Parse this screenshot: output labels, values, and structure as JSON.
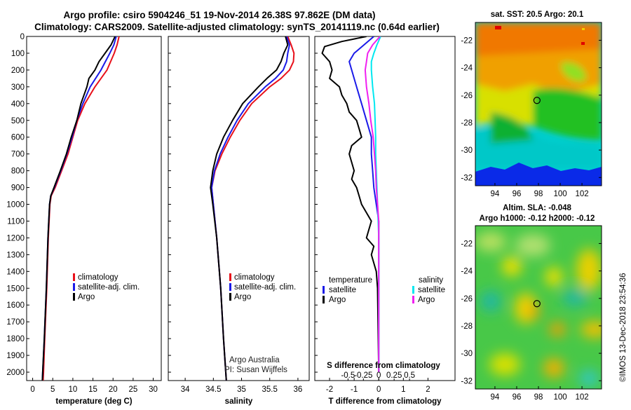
{
  "header": {
    "title_line1": "Argo profile: csiro 5904246_51 19-Nov-2014 26.38S 97.862E (DM data)",
    "title_line2": "Climatology: CARS2009. Satellite-adjusted climatology: synTS_20141119.nc (0.64d earlier)"
  },
  "colors": {
    "climatology": "#e8101a",
    "satellite": "#1a1ae8",
    "argo": "#000000",
    "satellite_salinity": "#00e8f0",
    "argo_salinity": "#f020f0"
  },
  "chart_data": [
    {
      "type": "line",
      "title": "temperature",
      "xlabel": "temperature (deg C)",
      "ylabel": "",
      "xlim": [
        -1.5,
        32
      ],
      "ylim": [
        2050,
        0
      ],
      "xticks": [
        "0",
        "5",
        "10",
        "15",
        "20",
        "25",
        "30"
      ],
      "yticks": [
        "0",
        "100",
        "200",
        "300",
        "400",
        "500",
        "600",
        "700",
        "800",
        "900",
        "1000",
        "1100",
        "1200",
        "1300",
        "1400",
        "1500",
        "1600",
        "1700",
        "1800",
        "1900",
        "2000"
      ],
      "legend": [
        "climatology",
        "satellite-adj. clim.",
        "Argo"
      ],
      "series": [
        {
          "name": "climatology",
          "depth": [
            0,
            50,
            100,
            200,
            300,
            400,
            500,
            600,
            700,
            800,
            900,
            950,
            1000,
            1200,
            1500,
            1800,
            2000,
            2050
          ],
          "values": [
            21.5,
            21,
            20.3,
            18.5,
            15.5,
            13,
            11.2,
            10,
            8.8,
            7.2,
            5.6,
            4.6,
            4.3,
            3.9,
            3.5,
            3,
            2.7,
            2.6
          ]
        },
        {
          "name": "satellite-adj. clim.",
          "depth": [
            0,
            50,
            100,
            200,
            300,
            400,
            500,
            600,
            700,
            800,
            900,
            950,
            1000,
            1200,
            1500,
            1800,
            2000,
            2050
          ],
          "values": [
            20.8,
            20.2,
            19.2,
            17,
            14.3,
            12.5,
            11,
            9.8,
            8.5,
            7,
            5.4,
            4.5,
            4.2,
            3.8,
            3.4,
            2.9,
            2.5,
            2.4
          ]
        },
        {
          "name": "Argo",
          "depth": [
            0,
            50,
            100,
            150,
            200,
            250,
            300,
            400,
            500,
            600,
            700,
            800,
            900,
            950,
            1000,
            1200,
            1500,
            1800,
            2000,
            2050
          ],
          "values": [
            20.5,
            19.5,
            18,
            16.5,
            15.5,
            14,
            13.5,
            12,
            11,
            9.6,
            8.4,
            6.9,
            5.3,
            4.5,
            4.2,
            3.8,
            3.4,
            2.9,
            2.5,
            2.4
          ]
        }
      ]
    },
    {
      "type": "line",
      "title": "salinity",
      "xlabel": "salinity",
      "ylabel": "",
      "xlim": [
        33.7,
        36.2
      ],
      "ylim": [
        2050,
        0
      ],
      "xticks": [
        "34",
        "34.5",
        "35",
        "35.5",
        "36"
      ],
      "legend": [
        "climatology",
        "satellite-adj. clim.",
        "Argo"
      ],
      "annotation": [
        "Argo Australia",
        "PI: Susan Wijffels"
      ],
      "series": [
        {
          "name": "climatology",
          "depth": [
            0,
            50,
            100,
            150,
            200,
            250,
            300,
            400,
            500,
            600,
            700,
            800,
            900,
            1000,
            1200,
            1500,
            1800,
            2000,
            2050
          ],
          "values": [
            35.82,
            35.88,
            35.93,
            35.92,
            35.85,
            35.7,
            35.5,
            35.18,
            34.97,
            34.8,
            34.65,
            34.53,
            34.47,
            34.5,
            34.56,
            34.63,
            34.68,
            34.72,
            34.73
          ]
        },
        {
          "name": "satellite-adj. clim.",
          "depth": [
            0,
            50,
            100,
            150,
            200,
            250,
            300,
            400,
            500,
            600,
            700,
            800,
            900,
            1000,
            1200,
            1500,
            1800,
            2000,
            2050
          ],
          "values": [
            35.8,
            35.85,
            35.82,
            35.8,
            35.74,
            35.6,
            35.42,
            35.12,
            34.92,
            34.76,
            34.62,
            34.52,
            34.47,
            34.5,
            34.56,
            34.63,
            34.68,
            34.72,
            34.73
          ]
        },
        {
          "name": "Argo",
          "depth": [
            0,
            50,
            100,
            150,
            200,
            250,
            300,
            400,
            500,
            600,
            700,
            800,
            900,
            1000,
            1200,
            1500,
            1800,
            2000,
            2050
          ],
          "values": [
            35.78,
            35.82,
            35.75,
            35.7,
            35.62,
            35.45,
            35.3,
            35.02,
            34.84,
            34.68,
            34.56,
            34.49,
            34.45,
            34.49,
            34.56,
            34.63,
            34.68,
            34.72,
            34.73
          ]
        }
      ]
    },
    {
      "type": "line",
      "title": "T and S difference from climatology",
      "xlabel": "T difference from climatology",
      "xlabel_top": "S difference from climatology",
      "xlim": [
        -2.6,
        3.1
      ],
      "ylim": [
        2050,
        0
      ],
      "xticks": [
        "-2",
        "-1",
        "0",
        "1",
        "2"
      ],
      "xticks_s": [
        "-0.5",
        "-0.25",
        "0",
        "0.25",
        "0.5"
      ],
      "legend_temperature_title": "temperature",
      "legend_salinity_title": "salinity",
      "legend_temperature": [
        "satellite",
        "Argo"
      ],
      "legend_salinity": [
        "satellite",
        "Argo"
      ],
      "series": [
        {
          "name": "T satellite",
          "depth": [
            0,
            50,
            100,
            150,
            200,
            300,
            400,
            500,
            600,
            700,
            800,
            900,
            1000,
            1100,
            1200,
            1400,
            2000
          ],
          "values": [
            -0.2,
            -0.6,
            -1,
            -1.2,
            -1.1,
            -0.9,
            -0.7,
            -0.5,
            -0.3,
            -0.3,
            -0.25,
            -0.2,
            -0.1,
            0,
            0,
            0,
            0
          ]
        },
        {
          "name": "T Argo",
          "depth": [
            0,
            30,
            60,
            100,
            150,
            200,
            250,
            300,
            350,
            400,
            450,
            500,
            550,
            600,
            650,
            700,
            750,
            800,
            850,
            900,
            950,
            1000,
            1050,
            1100,
            1150,
            1200,
            1250,
            1300,
            1400,
            1500,
            2000
          ],
          "values": [
            -0.5,
            -1.5,
            -2.2,
            -2.3,
            -2,
            -1.9,
            -2,
            -1.6,
            -1.5,
            -1.3,
            -1.2,
            -0.9,
            -0.8,
            -0.7,
            -1.1,
            -1.2,
            -1.1,
            -1,
            -1.1,
            -0.9,
            -0.8,
            -0.7,
            -0.5,
            -0.3,
            -0.4,
            -0.5,
            -0.2,
            -0.3,
            -0.1,
            -0.05,
            0
          ]
        },
        {
          "name": "S satellite",
          "depth": [
            0,
            50,
            100,
            150,
            200,
            300,
            400,
            500,
            600,
            700,
            800,
            900,
            1000,
            1100,
            1200,
            2000
          ],
          "values": [
            0.03,
            -0.03,
            -0.08,
            -0.12,
            -0.12,
            -0.1,
            -0.07,
            -0.06,
            -0.05,
            -0.05,
            -0.04,
            -0.03,
            -0.02,
            -0.01,
            0,
            0
          ]
        },
        {
          "name": "S Argo",
          "depth": [
            0,
            50,
            100,
            150,
            200,
            300,
            400,
            500,
            600,
            700,
            800,
            900,
            1000,
            1100,
            1200,
            2000
          ],
          "values": [
            0.02,
            -0.1,
            -0.18,
            -0.2,
            -0.22,
            -0.2,
            -0.16,
            -0.13,
            -0.09,
            -0.07,
            -0.05,
            -0.04,
            -0.02,
            0,
            0,
            0
          ]
        }
      ]
    },
    {
      "type": "heatmap",
      "title": "sat. SST: 20.5 Argo: 20.1",
      "xticks": [
        "94",
        "96",
        "98",
        "100",
        "102"
      ],
      "yticks": [
        "-22",
        "-24",
        "-26",
        "-28",
        "-30",
        "-32"
      ],
      "xlim": [
        92.2,
        103.8
      ],
      "ylim": [
        -32.6,
        -20.7
      ],
      "marker": {
        "lon": 97.862,
        "lat": -26.38
      }
    },
    {
      "type": "heatmap",
      "title_line1": "Altim. SLA: -0.048",
      "title_line2": "Argo h1000: -0.12 h2000: -0.12",
      "xticks": [
        "94",
        "96",
        "98",
        "100",
        "102"
      ],
      "yticks": [
        "-22",
        "-24",
        "-26",
        "-28",
        "-30",
        "-32"
      ],
      "xlim": [
        92.2,
        103.8
      ],
      "ylim": [
        -32.6,
        -20.7
      ],
      "marker": {
        "lon": 97.862,
        "lat": -26.38
      }
    }
  ],
  "footer": {
    "stamp": "©IMOS 13-Dec-2018 23:54:36"
  }
}
